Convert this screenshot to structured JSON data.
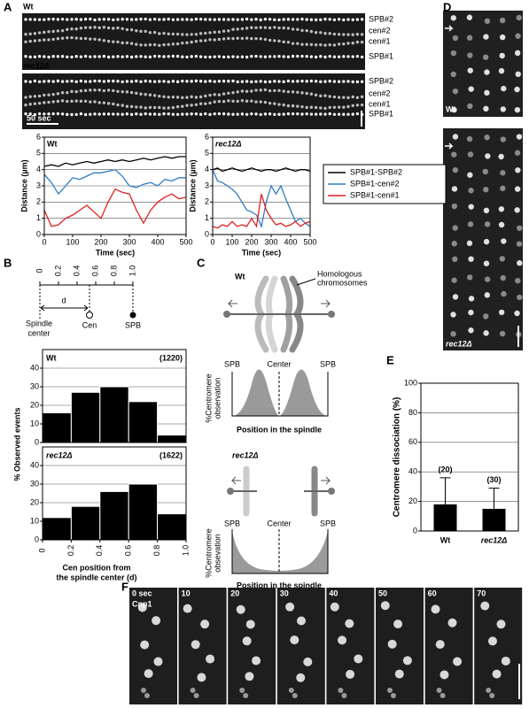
{
  "figure": {
    "panels": [
      "A",
      "B",
      "C",
      "D",
      "E",
      "F"
    ],
    "kymographs": [
      {
        "label": "Wt",
        "markers": [
          "SPB#2",
          "cen#2",
          "cen#1",
          "SPB#1"
        ]
      },
      {
        "label": "rec12Δ",
        "markers": [
          "SPB#2",
          "cen#2",
          "cen#1",
          "SPB#1"
        ],
        "scale": "50 sec"
      }
    ],
    "b_diagram": {
      "ticks": [
        "0",
        "0.2",
        "0.4",
        "0.6",
        "0.8",
        "1.0"
      ],
      "d": "d",
      "spindle_center": [
        "Spindle",
        "center"
      ],
      "cen": "Cen",
      "spb": "SPB"
    },
    "c_diagram": {
      "wt": "Wt",
      "homologous": [
        "Homologous",
        "chromosomes"
      ],
      "rec12": "rec12Δ",
      "plot_wt": {
        "left": "SPB",
        "center": "Center",
        "right": "SPB",
        "ylabel": [
          "%Centromere",
          "observation"
        ],
        "xlabel": "Position in the spindle"
      },
      "plot_rec12": {
        "left": "SPB",
        "center": "Center",
        "right": "SPB",
        "ylabel": [
          "%Centromere",
          "obsevation"
        ],
        "xlabel": "Position in the spindle"
      }
    },
    "d_images": [
      "Wt",
      "rec12Δ"
    ],
    "f_images": {
      "stain": "Cnp1",
      "times": [
        "0 sec",
        "10",
        "20",
        "30",
        "40",
        "50",
        "60",
        "70"
      ]
    }
  },
  "chart_data": [
    {
      "type": "line",
      "title": "Wt",
      "xlabel": "Time (sec)",
      "ylabel": "Distance (µm)",
      "x": [
        0,
        25,
        50,
        75,
        100,
        125,
        150,
        175,
        200,
        225,
        250,
        275,
        300,
        325,
        350,
        375,
        400,
        425,
        450,
        475,
        500
      ],
      "xlim": [
        0,
        500
      ],
      "xticks": [
        0,
        100,
        200,
        300,
        400,
        500
      ],
      "ylim": [
        0,
        6
      ],
      "yticks": [
        0,
        1,
        2,
        3,
        4,
        5,
        6
      ],
      "grid": true,
      "series": [
        {
          "name": "SPB#1-SPB#2",
          "color": "#000000",
          "values": [
            4.2,
            4.3,
            4.2,
            4.4,
            4.3,
            4.4,
            4.5,
            4.4,
            4.5,
            4.6,
            4.5,
            4.6,
            4.5,
            4.6,
            4.7,
            4.6,
            4.7,
            4.8,
            4.7,
            4.8,
            4.8
          ]
        },
        {
          "name": "SPB#1-cen#2",
          "color": "#2e7dc4",
          "values": [
            3.7,
            3.2,
            2.5,
            3.0,
            3.5,
            3.4,
            3.6,
            3.8,
            3.8,
            3.9,
            4.0,
            3.6,
            3.0,
            2.9,
            3.1,
            3.2,
            3.0,
            3.4,
            3.3,
            3.5,
            3.5
          ]
        },
        {
          "name": "SPB#1-cen#1",
          "color": "#e02020",
          "values": [
            1.5,
            0.5,
            0.6,
            1.0,
            1.2,
            1.5,
            1.8,
            1.4,
            1.0,
            2.0,
            2.8,
            2.6,
            2.5,
            1.5,
            0.7,
            1.5,
            2.0,
            2.3,
            2.5,
            2.2,
            2.3
          ]
        }
      ]
    },
    {
      "type": "line",
      "title": "rec12Δ",
      "xlabel": "Time (sec)",
      "ylabel": "Distance (µm)",
      "x": [
        0,
        25,
        50,
        75,
        100,
        125,
        150,
        175,
        200,
        225,
        250,
        275,
        300,
        325,
        350,
        375,
        400,
        425,
        450,
        475,
        500
      ],
      "xlim": [
        0,
        500
      ],
      "xticks": [
        0,
        100,
        200,
        300,
        400,
        500
      ],
      "ylim": [
        0,
        6
      ],
      "yticks": [
        0,
        1,
        2,
        3,
        4,
        5,
        6
      ],
      "grid": true,
      "series": [
        {
          "color": "#000000",
          "values": [
            4.0,
            4.1,
            3.9,
            4.0,
            4.1,
            4.0,
            3.9,
            4.0,
            4.1,
            4.0,
            3.9,
            4.0,
            4.0,
            3.9,
            4.0,
            4.1,
            4.0,
            3.9,
            4.0,
            4.0,
            3.9
          ]
        },
        {
          "color": "#2e7dc4",
          "values": [
            4.0,
            3.3,
            3.2,
            3.0,
            2.8,
            2.5,
            2.0,
            1.5,
            1.4,
            1.2,
            0.5,
            2.0,
            3.0,
            2.5,
            3.0,
            2.2,
            1.5,
            0.8,
            1.0,
            0.7,
            0.5
          ]
        },
        {
          "color": "#e02020",
          "values": [
            0.5,
            0.4,
            0.6,
            0.5,
            0.8,
            0.5,
            0.6,
            0.5,
            1.0,
            0.5,
            2.5,
            1.5,
            1.0,
            0.6,
            0.7,
            0.5,
            0.6,
            0.8,
            0.5,
            0.7,
            0.8
          ]
        }
      ]
    },
    {
      "type": "histogram",
      "title": "Wt",
      "annotation": "(1220)",
      "color": "#000000",
      "bins": [
        0,
        0.2,
        0.4,
        0.6,
        0.8,
        1.0
      ],
      "values": [
        16,
        27,
        30,
        22,
        4
      ],
      "ylim": [
        0,
        50
      ],
      "yticks": [
        0,
        10,
        20,
        30,
        40
      ],
      "grid": true
    },
    {
      "type": "histogram",
      "title": "rec12Δ",
      "annotation": "(1622)",
      "color": "#000000",
      "bins": [
        0,
        0.2,
        0.4,
        0.6,
        0.8,
        1.0
      ],
      "values": [
        12,
        18,
        26,
        30,
        14
      ],
      "xlim": [
        0,
        1
      ],
      "xticks": [
        0,
        0.2,
        0.4,
        0.6,
        0.8,
        {
          "value": 1,
          "label": "1.0"
        }
      ],
      "ylim": [
        0,
        50
      ],
      "yticks": [
        0,
        10,
        20,
        30,
        40
      ],
      "grid": true,
      "xlabel": [
        "Cen position from",
        "the spindle center (d)"
      ],
      "ylabel": "% Observed events"
    },
    {
      "type": "bar",
      "ylabel": "Centromere dissociation (%)",
      "color": "#000000",
      "categories": [
        "Wt",
        "rec12Δ"
      ],
      "values": [
        18,
        15
      ],
      "errors": [
        18,
        14
      ],
      "annotations": [
        "(20)",
        "(30)"
      ],
      "ylim": [
        0,
        100
      ],
      "yticks": [
        0,
        20,
        40,
        60,
        80,
        100
      ],
      "grid": true
    }
  ]
}
